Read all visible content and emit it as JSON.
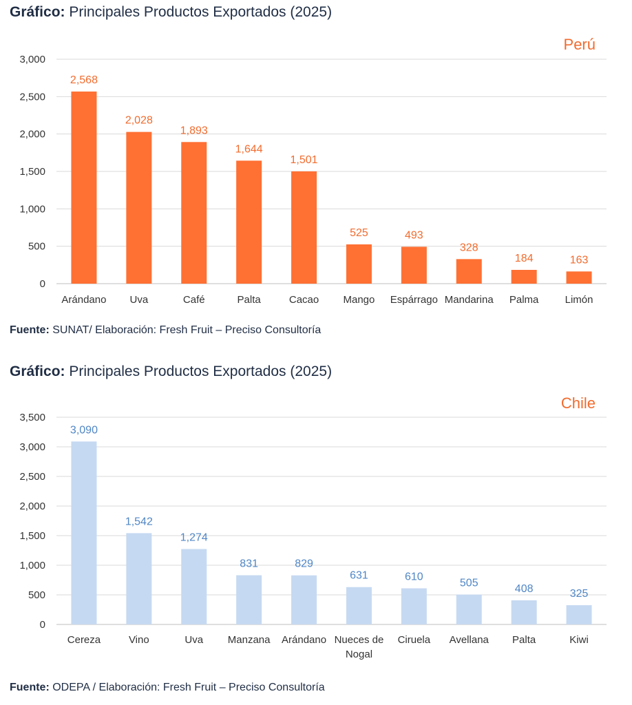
{
  "charts_meta": [
    {
      "heading_prefix": "Gráfico:",
      "heading_text": "Principales Productos Exportados (2025)",
      "source_prefix": "Fuente:",
      "source_text": "SUNAT/ Elaboración: Fresh Fruit – Preciso Consultoría"
    },
    {
      "heading_prefix": "Gráfico:",
      "heading_text": "Principales Productos Exportados (2025)",
      "source_prefix": "Fuente:",
      "source_text": " ODEPA / Elaboración: Fresh Fruit – Preciso Consultoría"
    }
  ],
  "chart_data": [
    {
      "type": "bar",
      "title": "Perú",
      "categories": [
        "Arándano",
        "Uva",
        "Café",
        "Palta",
        "Cacao",
        "Mango",
        "Espárrago",
        "Mandarina",
        "Palma",
        "Limón"
      ],
      "values": [
        2568,
        2028,
        1893,
        1644,
        1501,
        525,
        493,
        328,
        184,
        163
      ],
      "value_labels": [
        "2,568",
        "2,028",
        "1,893",
        "1,644",
        "1,501",
        "525",
        "493",
        "328",
        "184",
        "163"
      ],
      "ylim": [
        0,
        3000
      ],
      "yticks": [
        0,
        500,
        1000,
        1500,
        2000,
        2500,
        3000
      ],
      "ytick_labels": [
        "0",
        "500",
        "1,000",
        "1,500",
        "2,000",
        "2,500",
        "3,000"
      ],
      "bar_color": "#ff7033",
      "label_color": "#f26b2d",
      "title_color": "#f26b2d",
      "grid": true
    },
    {
      "type": "bar",
      "title": "Chile",
      "categories": [
        "Cereza",
        "Vino",
        "Uva",
        "Manzana",
        "Arándano",
        "Nueces de Nogal",
        "Ciruela",
        "Avellana",
        "Palta",
        "Kiwi"
      ],
      "values": [
        3090,
        1542,
        1274,
        831,
        829,
        631,
        610,
        505,
        408,
        325
      ],
      "value_labels": [
        "3,090",
        "1,542",
        "1,274",
        "831",
        "829",
        "631",
        "610",
        "505",
        "408",
        "325"
      ],
      "ylim": [
        0,
        3500
      ],
      "yticks": [
        0,
        500,
        1000,
        1500,
        2000,
        2500,
        3000,
        3500
      ],
      "ytick_labels": [
        "0",
        "500",
        "1,000",
        "1,500",
        "2,000",
        "2,500",
        "3,000",
        "3,500"
      ],
      "bar_color": "#c6d9f2",
      "label_color": "#4f86c6",
      "title_color": "#f26b2d",
      "grid": true
    }
  ]
}
